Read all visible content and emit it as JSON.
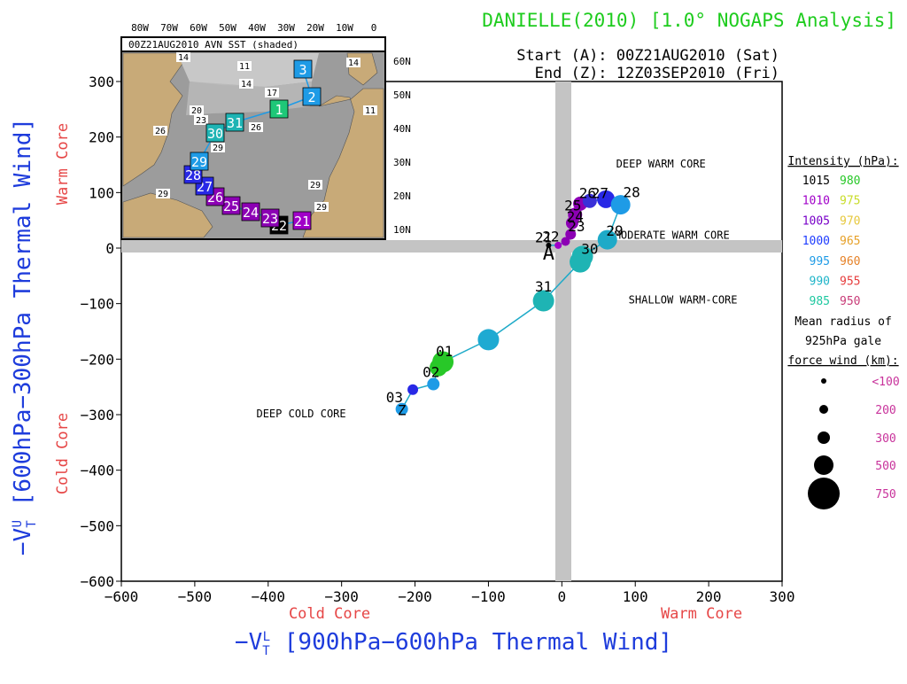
{
  "header": {
    "title": "DANIELLE(2010) [1.0° NOGAPS Analysis]",
    "start": "Start (A): 00Z21AUG2010 (Sat)",
    "end": "End (Z): 12Z03SEP2010 (Fri)"
  },
  "inset": {
    "label": "00Z21AUG2010 AVN SST (shaded)",
    "lon_labels": [
      "80W",
      "70W",
      "60W",
      "50W",
      "40W",
      "30W",
      "20W",
      "10W",
      "0"
    ],
    "lat_labels": [
      "60N",
      "50N",
      "40N",
      "30N",
      "20N",
      "10N"
    ],
    "contour_labels": [
      "14",
      "11",
      "14",
      "14",
      "17",
      "20",
      "23",
      "26",
      "26",
      "29",
      "29",
      "29",
      "29",
      "11"
    ],
    "track": [
      {
        "label": "21",
        "color": "#a000c8"
      },
      {
        "label": "22",
        "color": "#000000"
      },
      {
        "label": "23",
        "color": "#8c00b4"
      },
      {
        "label": "24",
        "color": "#8c00b4"
      },
      {
        "label": "25",
        "color": "#8c00b4"
      },
      {
        "label": "26",
        "color": "#8c00b4"
      },
      {
        "label": "27",
        "color": "#2828e6"
      },
      {
        "label": "28",
        "color": "#2828e6"
      },
      {
        "label": "29",
        "color": "#1e9be6"
      },
      {
        "label": "30",
        "color": "#1eb4b4"
      },
      {
        "label": "31",
        "color": "#1eb4b4"
      },
      {
        "label": "1",
        "color": "#1ec878"
      },
      {
        "label": "2",
        "color": "#1e9be6"
      },
      {
        "label": "3",
        "color": "#1e9be6"
      }
    ]
  },
  "legend": {
    "intensity_title": "Intensity (hPa):",
    "intensity": [
      {
        "left": "1015",
        "left_color": "#000000",
        "right": "980",
        "right_color": "#28c828"
      },
      {
        "left": "1010",
        "left_color": "#a000c8",
        "right": "975",
        "right_color": "#c8dc28"
      },
      {
        "left": "1005",
        "left_color": "#7800c8",
        "right": "970",
        "right_color": "#e6c83c"
      },
      {
        "left": "1000",
        "left_color": "#1e3cff",
        "right": "965",
        "right_color": "#e6a028"
      },
      {
        "left": "995",
        "left_color": "#1e9be6",
        "right": "960",
        "right_color": "#e68228"
      },
      {
        "left": "990",
        "left_color": "#1eb4c8",
        "right": "955",
        "right_color": "#e63c3c"
      },
      {
        "left": "985",
        "left_color": "#1ec8a0",
        "right": "950",
        "right_color": "#c83c78"
      }
    ],
    "radius_title": [
      "Mean radius of",
      "925hPa gale",
      "force wind (km):"
    ],
    "radius": [
      {
        "label": "<100",
        "r": 3
      },
      {
        "label": "200",
        "r": 5
      },
      {
        "label": "300",
        "r": 7
      },
      {
        "label": "500",
        "r": 11
      },
      {
        "label": "750",
        "r": 18
      }
    ]
  },
  "chart_data": {
    "type": "scatter",
    "xlim": [
      -600,
      300
    ],
    "ylim": [
      -600,
      300
    ],
    "xticks": [
      -600,
      -500,
      -400,
      -300,
      -200,
      -100,
      0,
      100,
      200,
      300
    ],
    "yticks": [
      -600,
      -500,
      -400,
      -300,
      -200,
      -100,
      0,
      100,
      200,
      300
    ],
    "xlabel": "−V_T^L [900hPa−600hPa Thermal Wind]",
    "xlabel_main": "−V",
    "xlabel_sup": "L",
    "xlabel_sub": "T",
    "xlabel_rest": " [900hPa−600hPa Thermal Wind]",
    "ylabel": "−V_T^U [600hPa−300hPa Thermal Wind]",
    "ylabel_main": "−V",
    "ylabel_sup": "U",
    "ylabel_sub": "T",
    "ylabel_rest": " [600hPa−300hPa Thermal Wind]",
    "x_left_note": "Cold Core",
    "x_right_note": "Warm Core",
    "y_bottom_note": "Cold Core",
    "y_top_note": "Warm Core",
    "annotations": [
      {
        "text": "DEEP WARM CORE",
        "x": 135,
        "y": 145
      },
      {
        "text": "MODERATE WARM CORE",
        "x": 150,
        "y": 17
      },
      {
        "text": "SHALLOW WARM-CORE",
        "x": 165,
        "y": -100
      },
      {
        "text": "DEEP COLD CORE",
        "x": -355,
        "y": -305
      }
    ],
    "points": [
      {
        "x": -18,
        "y": 5,
        "color": "#000000",
        "r": 3
      },
      {
        "x": -5,
        "y": 5,
        "color": "#a000c8",
        "r": 4
      },
      {
        "x": 5,
        "y": 12,
        "color": "#8c00b4",
        "r": 5
      },
      {
        "x": 12,
        "y": 25,
        "color": "#8c00b4",
        "r": 6
      },
      {
        "x": 14,
        "y": 45,
        "color": "#8c00b4",
        "r": 7
      },
      {
        "x": 18,
        "y": 60,
        "color": "#8c00b4",
        "r": 8
      },
      {
        "x": 25,
        "y": 80,
        "color": "#8c00b4",
        "r": 8
      },
      {
        "x": 38,
        "y": 85,
        "color": "#3a30d8",
        "r": 8
      },
      {
        "x": 60,
        "y": 88,
        "color": "#2828e6",
        "r": 10
      },
      {
        "x": 80,
        "y": 78,
        "color": "#1e9be6",
        "r": 11
      },
      {
        "x": 62,
        "y": 15,
        "color": "#1eaac8",
        "r": 11
      },
      {
        "x": 28,
        "y": -15,
        "color": "#1eb4b4",
        "r": 12
      },
      {
        "x": 25,
        "y": -25,
        "color": "#1eb4b4",
        "r": 12
      },
      {
        "x": -25,
        "y": -95,
        "color": "#1eb4b4",
        "r": 12
      },
      {
        "x": -100,
        "y": -165,
        "color": "#1eaad2",
        "r": 12
      },
      {
        "x": -162,
        "y": -205,
        "color": "#28c828",
        "r": 12
      },
      {
        "x": -168,
        "y": -215,
        "color": "#28c828",
        "r": 10
      },
      {
        "x": -175,
        "y": -245,
        "color": "#1e9be6",
        "r": 7
      },
      {
        "x": -203,
        "y": -255,
        "color": "#2828e6",
        "r": 6
      },
      {
        "x": -218,
        "y": -290,
        "color": "#1e9be6",
        "r": 7
      }
    ],
    "point_labels": [
      {
        "text": "21",
        "x": -25,
        "y": 10
      },
      {
        "text": "22",
        "x": -15,
        "y": 12
      },
      {
        "text": "23",
        "x": 20,
        "y": 30
      },
      {
        "text": "24",
        "x": 18,
        "y": 48
      },
      {
        "text": "25",
        "x": 15,
        "y": 68
      },
      {
        "text": "26",
        "x": 35,
        "y": 90
      },
      {
        "text": "27",
        "x": 52,
        "y": 90
      },
      {
        "text": "28",
        "x": 95,
        "y": 92
      },
      {
        "text": "29",
        "x": 72,
        "y": 22
      },
      {
        "text": "30",
        "x": 38,
        "y": -10
      },
      {
        "text": "31",
        "x": -25,
        "y": -78
      },
      {
        "text": "01",
        "x": -160,
        "y": -195
      },
      {
        "text": "02",
        "x": -178,
        "y": -232
      },
      {
        "text": "03",
        "x": -228,
        "y": -278
      }
    ],
    "start_marker": "A",
    "end_marker": "Z"
  }
}
